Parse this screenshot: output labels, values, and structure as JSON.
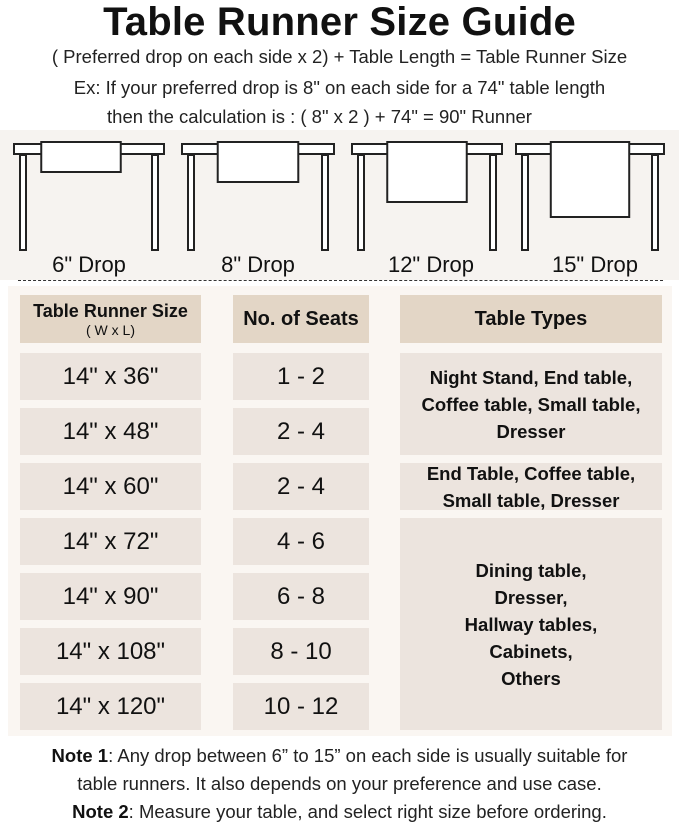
{
  "title": "Table Runner Size Guide",
  "formula": "( Preferred drop on each side x 2) + Table Length = Table Runner Size",
  "example_line1": "Ex: If your preferred drop is 8\" on each side for a 74\" table length",
  "example_line2": "then the calculation is : ( 8\" x 2 ) + 74\" = 90\" Runner",
  "drops": [
    {
      "label": "6\" Drop",
      "inches": 6
    },
    {
      "label": "8\" Drop",
      "inches": 8
    },
    {
      "label": "12\" Drop",
      "inches": 12
    },
    {
      "label": "15\" Drop",
      "inches": 15
    }
  ],
  "table": {
    "headers": {
      "size": "Table Runner Size",
      "size_sub": "( W x L)",
      "seats": "No. of Seats",
      "types": "Table Types"
    },
    "rows": [
      {
        "size": "14\" x 36\"",
        "seats": "1 - 2"
      },
      {
        "size": "14\" x 48\"",
        "seats": "2 - 4"
      },
      {
        "size": "14\" x 60\"",
        "seats": "2 - 4"
      },
      {
        "size": "14\" x 72\"",
        "seats": "4 - 6"
      },
      {
        "size": "14\" x 90\"",
        "seats": "6 - 8"
      },
      {
        "size": "14\" x 108\"",
        "seats": "8 - 10"
      },
      {
        "size": "14\" x 120\"",
        "seats": "10 - 12"
      }
    ],
    "types": [
      "Night Stand, End table, Coffee table, Small table, Dresser",
      "End Table, Coffee table, Small table, Dresser",
      "Dining table, Dresser, Hallway tables, Cabinets, Others"
    ]
  },
  "notes": [
    {
      "label": "Note 1",
      "text": ": Any drop between 6” to 15” on each side is usually suitable for",
      "text2": "table runners. It also depends on your preference and use case."
    },
    {
      "label": "Note 2",
      "text": ": Measure your table, and select right size before ordering."
    }
  ],
  "colors": {
    "header_bg": "#e3d6c6",
    "cell_bg": "#ece4de",
    "panel_bg": "#faf6f2"
  }
}
